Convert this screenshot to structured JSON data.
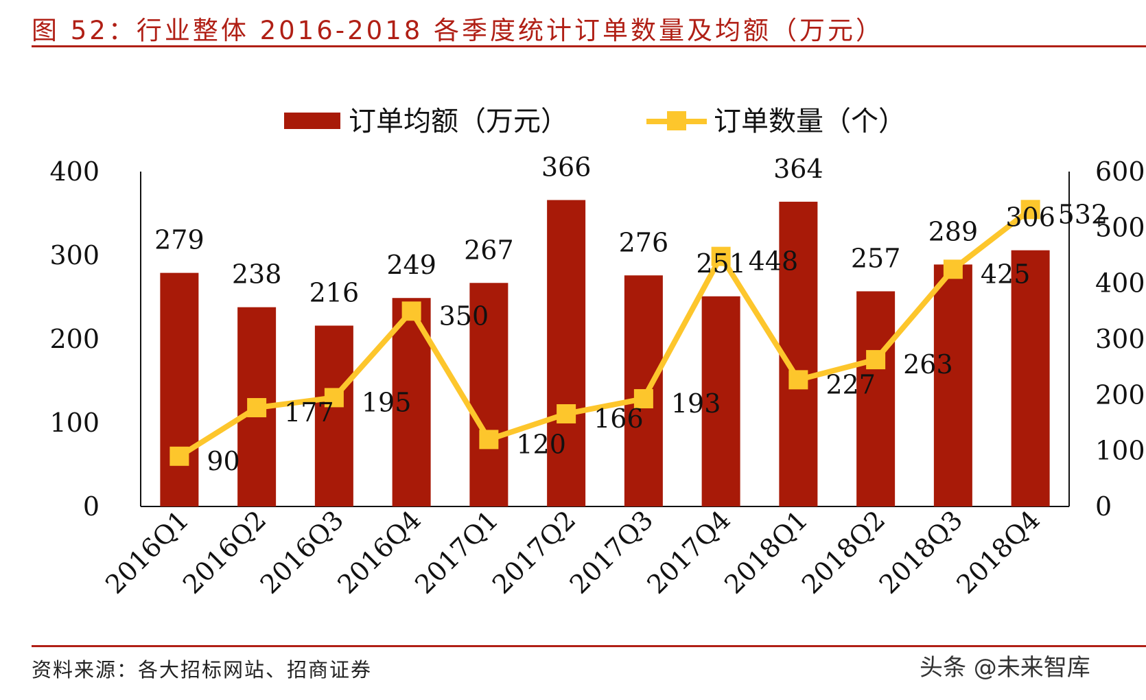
{
  "figure": {
    "title": "图 52：行业整体 2016-2018 各季度统计订单数量及均额（万元）",
    "source": "资料来源：各大招标网站、招商证券",
    "watermark": "头条 @未来智库"
  },
  "chart_data": {
    "type": "bar+line",
    "categories": [
      "2016Q1",
      "2016Q2",
      "2016Q3",
      "2016Q4",
      "2017Q1",
      "2017Q2",
      "2017Q3",
      "2017Q4",
      "2018Q1",
      "2018Q2",
      "2018Q3",
      "2018Q4"
    ],
    "series": [
      {
        "name": "订单均额（万元）",
        "type": "bar",
        "axis": "left",
        "color": "#a81a08",
        "values": [
          279,
          238,
          216,
          249,
          267,
          366,
          276,
          251,
          364,
          257,
          289,
          306
        ]
      },
      {
        "name": "订单数量（个）",
        "type": "line",
        "axis": "right",
        "color": "#fdc62c",
        "values": [
          90,
          177,
          195,
          350,
          120,
          166,
          193,
          448,
          227,
          263,
          425,
          532
        ]
      }
    ],
    "y_left": {
      "min": 0,
      "max": 400,
      "ticks": [
        0,
        100,
        200,
        300,
        400
      ]
    },
    "y_right": {
      "min": 0,
      "max": 600,
      "ticks": [
        0,
        100,
        200,
        300,
        400,
        500,
        600
      ]
    },
    "legend": "top-center",
    "grid": false
  }
}
